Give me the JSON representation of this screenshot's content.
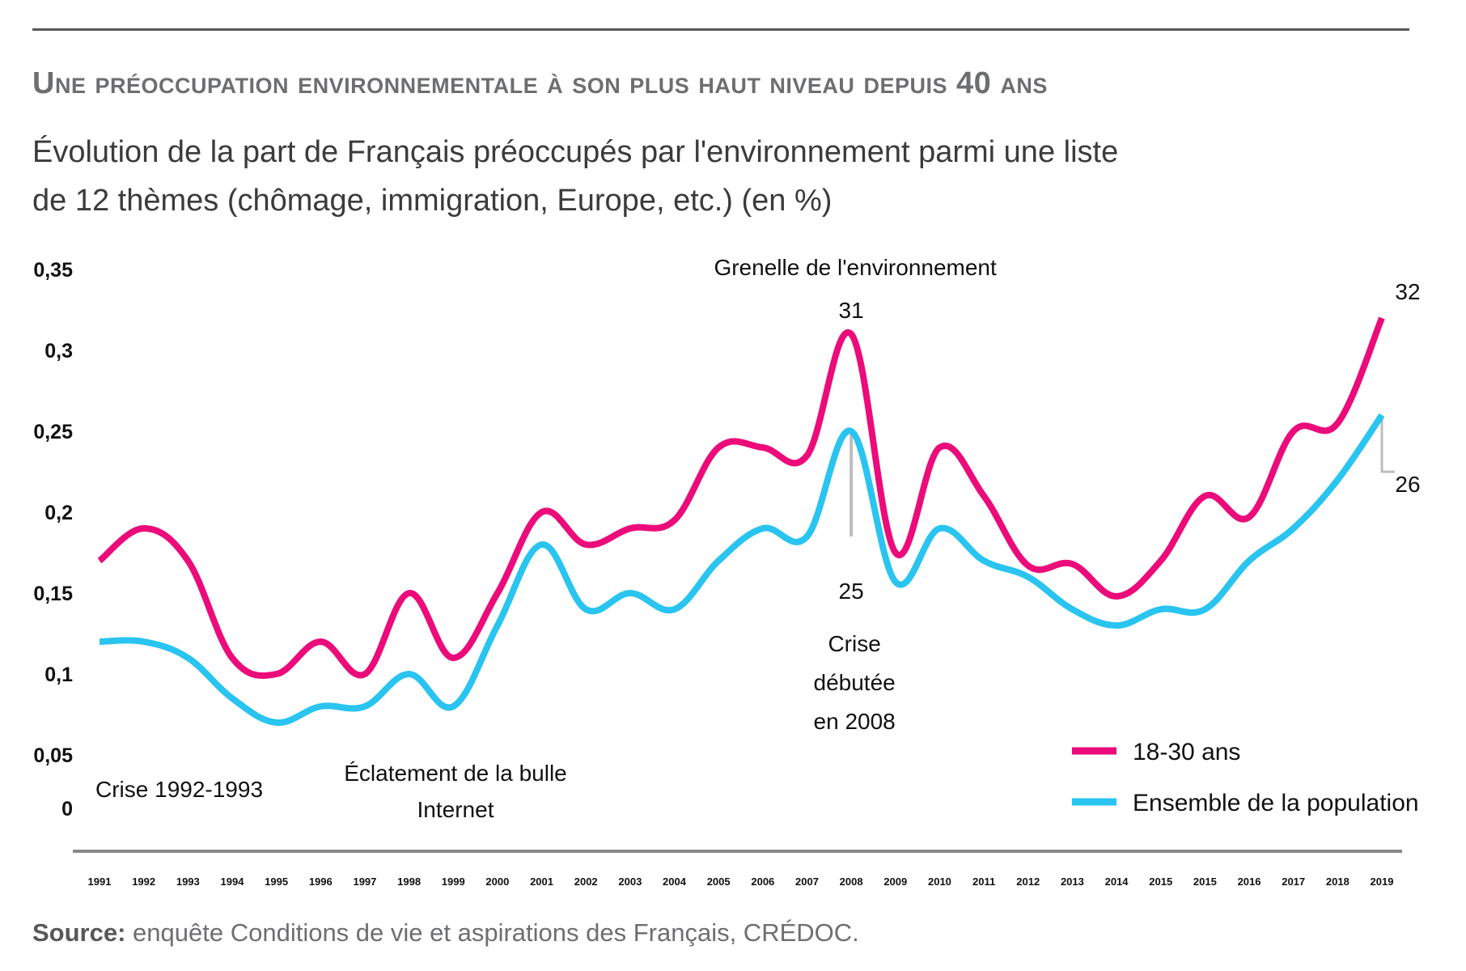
{
  "header": {
    "title": "Une préoccupation environnementale à son plus haut niveau depuis 40 ans",
    "subtitle_line1": "Évolution de la part de Français préoccupés par l'environnement parmi une liste",
    "subtitle_line2": "de 12 thèmes (chômage, immigration, Europe, etc.) (en %)"
  },
  "source": {
    "label": "Source:",
    "text": " enquête Conditions de vie et aspirations des Français, CRÉDOC."
  },
  "chart_data": {
    "type": "line",
    "title": "Une préoccupation environnementale à son plus haut niveau depuis 40 ans",
    "subtitle": "Évolution de la part de Français préoccupés par l'environnement parmi une liste de 12 thèmes (chômage, immigration, Europe, etc.) (en %)",
    "xlabel": "",
    "ylabel": "",
    "ylim": [
      0,
      0.35
    ],
    "grid": false,
    "legend_position": "bottom-right",
    "y_ticks": [
      "0",
      "0,05",
      "0,1",
      "0,15",
      "0,2",
      "0,25",
      "0,3",
      "0,35"
    ],
    "y_tick_values": [
      0,
      0.05,
      0.1,
      0.15,
      0.2,
      0.25,
      0.3,
      0.35
    ],
    "categories": [
      "1991",
      "1992",
      "1993",
      "1994",
      "1995",
      "1996",
      "1997",
      "1998",
      "1999",
      "2000",
      "2001",
      "2002",
      "2003",
      "2004",
      "2005",
      "2006",
      "2007",
      "2008",
      "2009",
      "2010",
      "2011",
      "2012",
      "2013",
      "2014",
      "2015",
      "2015",
      "2016",
      "2017",
      "2018",
      "2019"
    ],
    "series": [
      {
        "name": "18-30 ans",
        "color": "#ec0b7a",
        "values": [
          0.17,
          0.19,
          0.17,
          0.11,
          0.1,
          0.12,
          0.1,
          0.15,
          0.11,
          0.15,
          0.2,
          0.18,
          0.19,
          0.195,
          0.24,
          0.24,
          0.235,
          0.31,
          0.175,
          0.24,
          0.21,
          0.167,
          0.168,
          0.148,
          0.17,
          0.21,
          0.197,
          0.25,
          0.255,
          0.32
        ]
      },
      {
        "name": "Ensemble de la population",
        "color": "#29c4f0",
        "values": [
          0.12,
          0.12,
          0.11,
          0.085,
          0.07,
          0.08,
          0.08,
          0.1,
          0.08,
          0.13,
          0.18,
          0.14,
          0.15,
          0.14,
          0.17,
          0.19,
          0.185,
          0.25,
          0.157,
          0.19,
          0.17,
          0.16,
          0.14,
          0.13,
          0.14,
          0.14,
          0.17,
          0.19,
          0.22,
          0.26
        ]
      }
    ],
    "annotations": [
      {
        "text": "Grenelle de l'environnement",
        "category_index": 17
      },
      {
        "text": "31",
        "category_index": 17,
        "series": "18-30 ans"
      },
      {
        "text": "25",
        "category_index": 17,
        "series": "Ensemble de la population"
      },
      {
        "text_lines": [
          "Crise",
          "débutée",
          "en 2008"
        ],
        "category_index": 17
      },
      {
        "text": "32",
        "category_index": 29,
        "series": "18-30 ans"
      },
      {
        "text": "26",
        "category_index": 29,
        "series": "Ensemble de la population"
      },
      {
        "text": "Crise 1992-1993",
        "category_index": 1
      },
      {
        "text_lines": [
          "Éclatement de la bulle",
          "Internet"
        ],
        "category_index": 7
      }
    ]
  }
}
